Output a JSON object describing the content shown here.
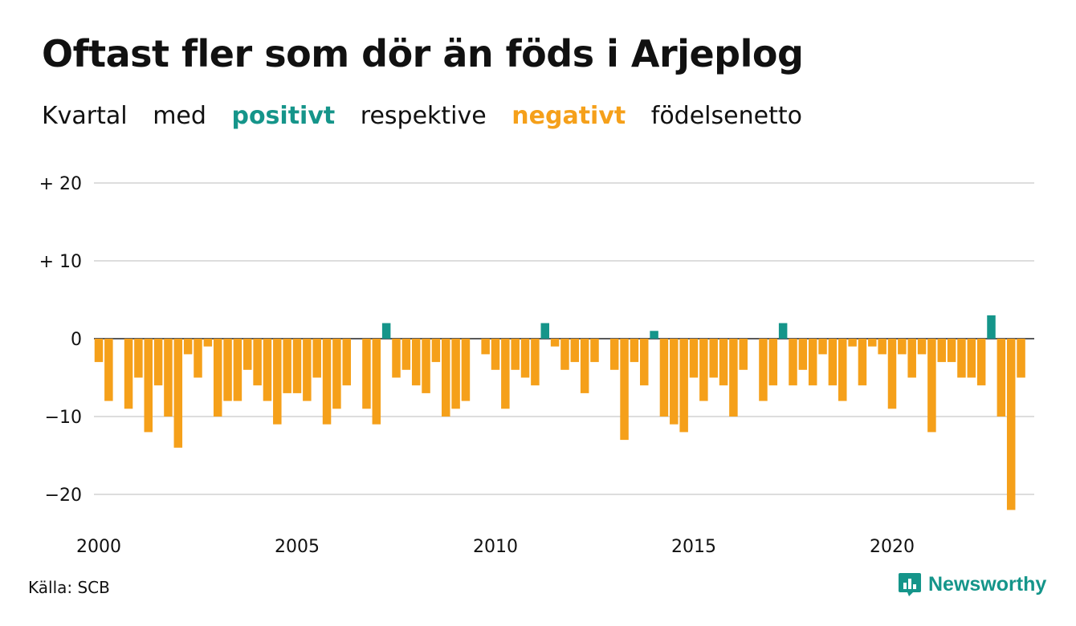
{
  "title": "Oftast fler som dör än föds i Arjeplog",
  "subtitle": {
    "parts": [
      "Kvartal",
      "med",
      "positivt",
      "respektive",
      "negativt",
      "födelsenetto"
    ]
  },
  "colors": {
    "positive": "#15958a",
    "negative": "#f5a01a",
    "grid": "#dddddd",
    "text": "#111111"
  },
  "source": "Källa: SCB",
  "logo": {
    "text": "Newsworthy",
    "icon": "newsworthy-chart-bubble-icon"
  },
  "chart_data": {
    "type": "bar",
    "x_start": "2000 Q1",
    "x_tick_labels": [
      "2000",
      "2005",
      "2010",
      "2015",
      "2020"
    ],
    "y_tick_labels": [
      "+ 20",
      "+ 10",
      "0",
      "−10",
      "−20"
    ],
    "y_ticks": [
      20,
      10,
      0,
      -10,
      -20
    ],
    "ylim": [
      -24,
      22
    ],
    "grid": true,
    "values": [
      -3,
      -8,
      0,
      -9,
      -5,
      -12,
      -6,
      -10,
      -14,
      -2,
      -5,
      -1,
      -10,
      -8,
      -8,
      -4,
      -6,
      -8,
      -11,
      -7,
      -7,
      -8,
      -5,
      -11,
      -9,
      -6,
      0,
      -9,
      -11,
      2,
      -5,
      -4,
      -6,
      -7,
      -3,
      -10,
      -9,
      -8,
      0,
      -2,
      -4,
      -9,
      -4,
      -5,
      -6,
      2,
      -1,
      -4,
      -3,
      -7,
      -3,
      0,
      -4,
      -13,
      -3,
      -6,
      1,
      -10,
      -11,
      -12,
      -5,
      -8,
      -5,
      -6,
      -10,
      -4,
      0,
      -8,
      -6,
      2,
      -6,
      -4,
      -6,
      -2,
      -6,
      -8,
      -1,
      -6,
      -1,
      -2,
      -9,
      -2,
      -5,
      -2,
      -12,
      -3,
      -3,
      -5,
      -5,
      -6,
      3,
      -10,
      -22,
      -5
    ]
  }
}
